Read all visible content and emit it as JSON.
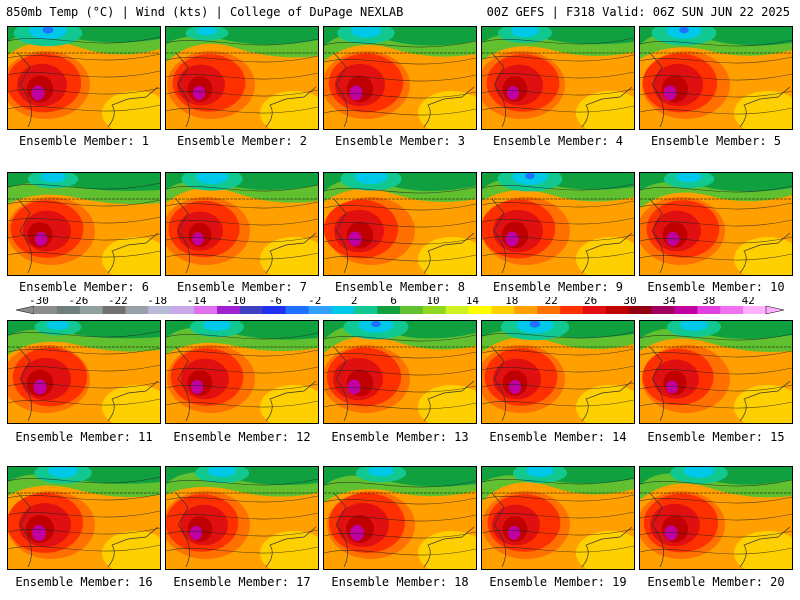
{
  "header": {
    "left": "850mb Temp (°C) | Wind (kts) | College of DuPage NEXLAB",
    "right": "00Z GEFS | F318 Valid: 06Z SUN JUN 22 2025"
  },
  "panels": [
    {
      "label": "Ensemble Member: 1",
      "cold": 0.9,
      "heat": 0.9
    },
    {
      "label": "Ensemble Member: 2",
      "cold": 0.2,
      "heat": 0.8
    },
    {
      "label": "Ensemble Member: 3",
      "cold": 0.6,
      "heat": 0.9
    },
    {
      "label": "Ensemble Member: 4",
      "cold": 0.5,
      "heat": 0.8
    },
    {
      "label": "Ensemble Member: 5",
      "cold": 0.8,
      "heat": 0.9
    },
    {
      "label": "Ensemble Member: 6",
      "cold": 0.4,
      "heat": 0.8
    },
    {
      "label": "Ensemble Member: 7",
      "cold": 0.7,
      "heat": 0.7
    },
    {
      "label": "Ensemble Member: 8",
      "cold": 0.7,
      "heat": 0.9
    },
    {
      "label": "Ensemble Member: 9",
      "cold": 0.8,
      "heat": 0.9
    },
    {
      "label": "Ensemble Member: 10",
      "cold": 0.4,
      "heat": 0.8
    },
    {
      "label": "Ensemble Member: 11",
      "cold": 0.3,
      "heat": 0.9
    },
    {
      "label": "Ensemble Member: 12",
      "cold": 0.5,
      "heat": 0.8
    },
    {
      "label": "Ensemble Member: 13",
      "cold": 0.8,
      "heat": 0.9
    },
    {
      "label": "Ensemble Member: 14",
      "cold": 0.9,
      "heat": 0.8
    },
    {
      "label": "Ensemble Member: 15",
      "cold": 0.5,
      "heat": 0.7
    },
    {
      "label": "Ensemble Member: 16",
      "cold": 0.6,
      "heat": 1.0
    },
    {
      "label": "Ensemble Member: 17",
      "cold": 0.5,
      "heat": 0.8
    },
    {
      "label": "Ensemble Member: 18",
      "cold": 0.4,
      "heat": 1.0
    },
    {
      "label": "Ensemble Member: 19",
      "cold": 0.5,
      "heat": 0.8
    },
    {
      "label": "Ensemble Member: 20",
      "cold": 0.6,
      "heat": 0.9
    }
  ],
  "colorbar": {
    "ticks": [
      "-30",
      "-26",
      "-22",
      "-18",
      "-14",
      "-10",
      "-6",
      "-2",
      "2",
      "6",
      "10",
      "14",
      "18",
      "22",
      "26",
      "30",
      "34",
      "38",
      "42"
    ],
    "colors": [
      "#8c8c8c",
      "#6f7f7f",
      "#8fa0a0",
      "#707070",
      "#9aa0a8",
      "#b9b9d8",
      "#c8a8e8",
      "#e070f0",
      "#a020d0",
      "#4040c0",
      "#2030f0",
      "#2070ff",
      "#30a0ff",
      "#00c8e8",
      "#10c890",
      "#10a040",
      "#60c030",
      "#90d820",
      "#d0f020",
      "#ffff00",
      "#ffd000",
      "#ffa000",
      "#ff7000",
      "#ff3000",
      "#e01010",
      "#c00000",
      "#900010",
      "#a00060",
      "#c000a0",
      "#e040e0",
      "#f070f0",
      "#ffb0ff"
    ]
  }
}
